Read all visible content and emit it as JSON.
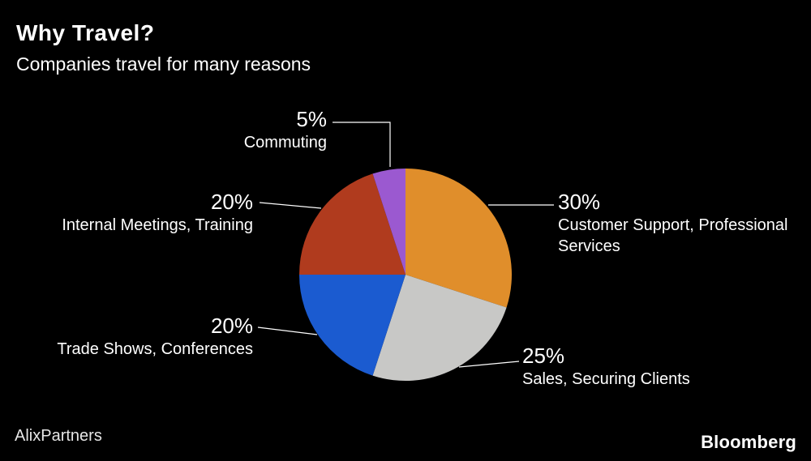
{
  "header": {
    "title": "Why Travel?",
    "subtitle": "Companies travel for many reasons"
  },
  "footer": {
    "source": "AlixPartners",
    "brand": "Bloomberg"
  },
  "chart_data": {
    "type": "pie",
    "title": "Why Travel?",
    "subtitle": "Companies travel for many reasons",
    "legend": "none",
    "source": "AlixPartners",
    "start_angle_deg": 0,
    "direction": "clockwise",
    "slices": [
      {
        "label": "Customer Support, Professional Services",
        "pct_label": "30%",
        "value": 30,
        "color": "#e08e2b"
      },
      {
        "label": "Sales, Securing Clients",
        "pct_label": "25%",
        "value": 25,
        "color": "#c8c8c6"
      },
      {
        "label": "Trade Shows, Conferences",
        "pct_label": "20%",
        "value": 20,
        "color": "#1b5bd0"
      },
      {
        "label": "Internal Meetings, Training",
        "pct_label": "20%",
        "value": 20,
        "color": "#b03b1e"
      },
      {
        "label": "Commuting",
        "pct_label": "5%",
        "value": 5,
        "color": "#9b59d0"
      }
    ]
  }
}
